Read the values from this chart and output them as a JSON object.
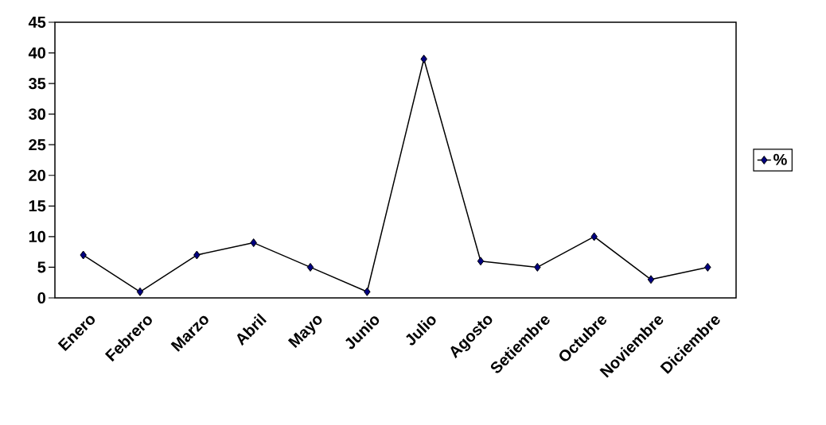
{
  "chart_data": {
    "type": "line",
    "categories": [
      "Enero",
      "Febrero",
      "Marzo",
      "Abril",
      "Mayo",
      "Junio",
      "Julio",
      "Agosto",
      "Setiembre",
      "Octubre",
      "Noviembre",
      "Diciembre"
    ],
    "series": [
      {
        "name": "%",
        "color": "#000080",
        "values": [
          7,
          1,
          7,
          9,
          5,
          1,
          39,
          6,
          5,
          10,
          3,
          5
        ]
      }
    ],
    "ylim": [
      0,
      45
    ],
    "yticks": [
      0,
      5,
      10,
      15,
      20,
      25,
      30,
      35,
      40,
      45
    ],
    "legend": "right",
    "marker": "diamond",
    "line_style": "solid"
  }
}
